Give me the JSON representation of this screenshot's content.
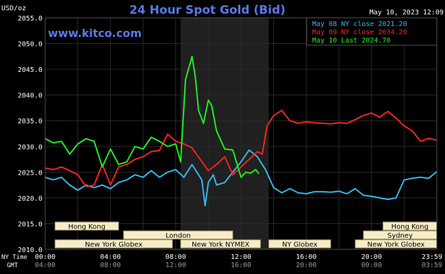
{
  "chart_data": {
    "type": "line",
    "title": "24 Hour Spot Gold (Bid)",
    "brand": "www.kitco.com",
    "ylabel": "USD/oz",
    "date_stamp": "May 10, 2023 12:09",
    "ylim": [
      2010,
      2055
    ],
    "yticks": [
      "2055.0",
      "2050.0",
      "2045.0",
      "2040.0",
      "2035.0",
      "2030.0",
      "2025.0",
      "2020.0",
      "2015.0",
      "2010.0"
    ],
    "xlim": [
      0,
      24
    ],
    "xticks_ny": [
      "00:00",
      "04:00",
      "08:00",
      "12:00",
      "16:00",
      "20:00",
      "23:59"
    ],
    "xticks_gmt": [
      "04:00",
      "08:00",
      "12:00",
      "16:00",
      "20:00",
      "00:00",
      "03:59"
    ],
    "xcaption_ny": "NY Time",
    "xcaption_gmt": "GMT",
    "grid": true,
    "legend_position": "top-right",
    "shaded_region_hours": [
      8.3,
      13.7
    ],
    "series": [
      {
        "name": "May 08 NY close 2021.20",
        "color": "#33bbee",
        "x": [
          0,
          0.5,
          1,
          1.5,
          2,
          2.5,
          3,
          3.5,
          4,
          4.5,
          5,
          5.5,
          6,
          6.5,
          7,
          7.5,
          8,
          8.5,
          9,
          9.3,
          9.6,
          9.8,
          10,
          10.3,
          10.5,
          11,
          11.5,
          12,
          12.5,
          13,
          13.5,
          14,
          14.5,
          15,
          15.5,
          16,
          16.5,
          17,
          17.5,
          18,
          18.5,
          19,
          19.5,
          20,
          20.5,
          21,
          21.5,
          22,
          22.5,
          23,
          23.5,
          24
        ],
        "y": [
          2024,
          2023.5,
          2024,
          2022.5,
          2021.5,
          2022.5,
          2022,
          2022.5,
          2021.8,
          2023,
          2023.5,
          2024.5,
          2024,
          2025.3,
          2024,
          2025,
          2025.5,
          2024,
          2026.5,
          2025,
          2023.5,
          2018.5,
          2023,
          2024.5,
          2022.5,
          2023,
          2025,
          2027,
          2029.3,
          2028,
          2025.5,
          2022,
          2021,
          2021.8,
          2021,
          2020.8,
          2021.2,
          2021.2,
          2021.1,
          2021.3,
          2020.8,
          2021.8,
          2020.5,
          2020.3,
          2020,
          2019.7,
          2020,
          2023.5,
          2023.8,
          2024,
          2023.8,
          2025.1
        ]
      },
      {
        "name": "May 09 NY close 2034.20",
        "color": "#ff2222",
        "x": [
          0,
          0.5,
          1,
          1.5,
          2,
          2.5,
          3,
          3.5,
          4,
          4.5,
          5,
          5.5,
          6,
          6.5,
          7,
          7.5,
          8,
          8.5,
          9,
          9.5,
          10,
          10.5,
          11,
          11.5,
          12,
          12.5,
          13,
          13.3,
          13.6,
          14,
          14.5,
          15,
          15.5,
          16,
          16.5,
          17,
          17.5,
          18,
          18.5,
          19,
          19.5,
          20,
          20.5,
          21,
          21.5,
          22,
          22.5,
          23,
          23.5,
          24
        ],
        "y": [
          2025.8,
          2025.5,
          2026,
          2025.3,
          2024.5,
          2022.2,
          2022.5,
          2026.5,
          2022.5,
          2026,
          2026.5,
          2027.5,
          2028,
          2029,
          2029.2,
          2032.4,
          2031,
          2030.5,
          2029.7,
          2027.5,
          2025.3,
          2026.5,
          2028,
          2024.5,
          2026,
          2027.5,
          2029,
          2028.5,
          2034,
          2036,
          2037,
          2035,
          2034.5,
          2034.8,
          2034.6,
          2034.5,
          2034.4,
          2034.6,
          2034.5,
          2035.2,
          2036,
          2036.5,
          2035.7,
          2036.8,
          2035.5,
          2034,
          2033,
          2031,
          2031.6,
          2031.2
        ]
      },
      {
        "name": "May 10 Last 2024.70",
        "color": "#22ee22",
        "x": [
          0,
          0.5,
          1,
          1.5,
          2,
          2.5,
          3,
          3.5,
          4,
          4.5,
          5,
          5.5,
          6,
          6.5,
          7,
          7.5,
          8,
          8.3,
          8.6,
          9,
          9.2,
          9.4,
          9.7,
          10,
          10.2,
          10.5,
          11,
          11.5,
          12,
          12.3,
          12.6,
          12.9,
          13.1
        ],
        "y": [
          2031.5,
          2030.7,
          2031,
          2028.5,
          2030.5,
          2031.5,
          2031,
          2026,
          2029.5,
          2026.5,
          2027,
          2030,
          2029.5,
          2031.8,
          2031,
          2030,
          2030.5,
          2027,
          2043,
          2047.5,
          2043.5,
          2037,
          2034.5,
          2039,
          2038,
          2033,
          2029.5,
          2029.3,
          2024,
          2025,
          2024.8,
          2025.5,
          2024.7
        ]
      }
    ]
  },
  "sessions": [
    {
      "label": "Hong Kong",
      "row": 0,
      "start": 0.6,
      "end": 4.5
    },
    {
      "label": "London",
      "row": 1,
      "start": 4.8,
      "end": 11.5
    },
    {
      "label": "New York Globex",
      "row": 2,
      "start": 0.6,
      "end": 7.8
    },
    {
      "label": "New York NYMEX",
      "row": 2,
      "start": 8.3,
      "end": 13.2
    },
    {
      "label": "NY Globex",
      "row": 2,
      "start": 13.7,
      "end": 17.5
    },
    {
      "label": "Hong Kong",
      "row": 0,
      "start": 20.7,
      "end": 24
    },
    {
      "label": "Sydney",
      "row": 1,
      "start": 19.5,
      "end": 24
    },
    {
      "label": "New York Globex",
      "row": 2,
      "start": 19.0,
      "end": 24
    }
  ],
  "colors": {
    "background": "#000000",
    "grid": "#2a2a2a",
    "shade": "#202020",
    "session_bar": "#f6edc6",
    "title": "#5a78e6"
  }
}
